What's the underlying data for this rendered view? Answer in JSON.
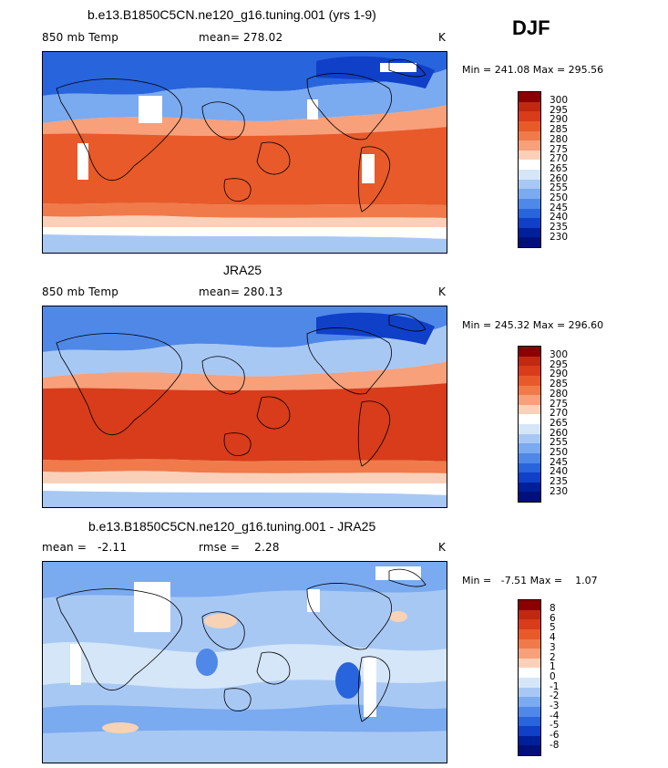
{
  "season": "DJF",
  "colors": [
    "#8b0000",
    "#c02810",
    "#d83c1a",
    "#e85a2a",
    "#f07a4a",
    "#f7a07a",
    "#fbd0b8",
    "#ffffff",
    "#d4e6f8",
    "#a8c8f4",
    "#7aaaf0",
    "#5088e8",
    "#2864dc",
    "#1040c8",
    "#001f9a",
    "#00107a"
  ],
  "panels": [
    {
      "title": "b.e13.B1850C5CN.ne120_g16.tuning.001 (yrs 1-9)",
      "left": "850 mb Temp",
      "center": "mean= 278.02",
      "right": "K",
      "minmax": "Min = 241.08 Max = 295.56",
      "colorbar_labels": [
        "300",
        "295",
        "290",
        "285",
        "280",
        "275",
        "270",
        "265",
        "260",
        "255",
        "250",
        "245",
        "240",
        "235",
        "230"
      ]
    },
    {
      "title": "JRA25",
      "left": "850 mb Temp",
      "center": "mean= 280.13",
      "right": "K",
      "minmax": "Min = 245.32 Max = 296.60",
      "colorbar_labels": [
        "300",
        "295",
        "290",
        "285",
        "280",
        "275",
        "270",
        "265",
        "260",
        "255",
        "250",
        "245",
        "240",
        "235",
        "230"
      ]
    },
    {
      "title": "b.e13.B1850C5CN.ne120_g16.tuning.001 - JRA25",
      "left": "mean =   -2.11",
      "center": "rmse =    2.28",
      "right": "K",
      "minmax": "Min =   -7.51 Max =    1.07",
      "colorbar_labels": [
        "8",
        "6",
        "5",
        "4",
        "3",
        "2",
        "1",
        "0",
        "-1",
        "-2",
        "-3",
        "-4",
        "-5",
        "-6",
        "-8"
      ]
    }
  ]
}
